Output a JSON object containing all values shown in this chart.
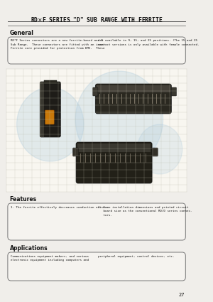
{
  "title": "RD✶F SERIES \"D\" SUB RANGE WITH FERRITE",
  "bg_color": "#f0eeea",
  "page_bg": "#f0eeea",
  "page_number": "27",
  "general_text_left": "RD*F Series connectors are a new ferrite-based and D\nSub Range.  These connectors are fitted with an inner\nFerrite core provided for protection from EMI.  These",
  "general_text_right": "are available in 9, 15, and 25 positions. (The 15 and 25\ncontact versions is only available with female connected.",
  "feat_text_left": "1. The ferrite effectively decreases conduction noise.",
  "feat_text_right": "2. Same installation dimensions and printed circuit\n   board size as the conventional RD/D series connec-\n   tors.",
  "app_text_left": "Communications equipment makers, and various\nelectronic equipment including computers and",
  "app_text_right": "peripheral equipment, control devices, etc.",
  "grid_color": "#bbbbaa",
  "connector_dark": "#2a2820",
  "connector_mid": "#555040",
  "orange_color": "#c8780a",
  "watermark_color": "#a8c8dc"
}
